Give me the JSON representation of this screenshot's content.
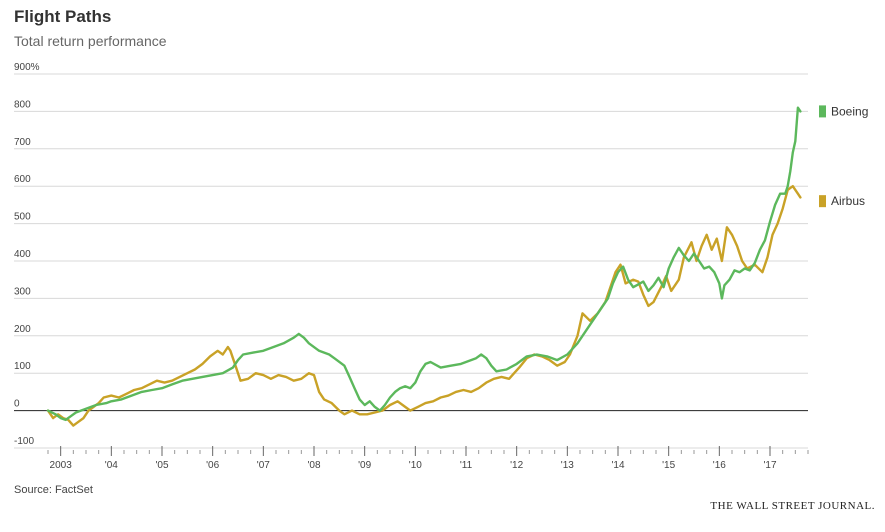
{
  "header": {
    "title": "Flight Paths",
    "subtitle": "Total return performance"
  },
  "footer": {
    "source": "Source: FactSet",
    "brand": "THE WALL STREET JOURNAL."
  },
  "colors": {
    "boeing": "#5cb85c",
    "airbus": "#c9a227",
    "grid": "#d8d8d8",
    "zero": "#222222"
  },
  "chart_data": {
    "type": "line",
    "title": "Flight Paths",
    "subtitle": "Total return performance",
    "ylim": [
      -100,
      900
    ],
    "yticks": [
      {
        "value": 900,
        "label": "900%"
      },
      {
        "value": 800,
        "label": "800"
      },
      {
        "value": 700,
        "label": "700"
      },
      {
        "value": 600,
        "label": "600"
      },
      {
        "value": 500,
        "label": "500"
      },
      {
        "value": 400,
        "label": "400"
      },
      {
        "value": 300,
        "label": "300"
      },
      {
        "value": 200,
        "label": "200"
      },
      {
        "value": 100,
        "label": "100"
      },
      {
        "value": 0,
        "label": "0"
      },
      {
        "value": -100,
        "label": "-100"
      }
    ],
    "xlim": [
      2002.75,
      2017.75
    ],
    "xticks": [
      {
        "value": 2003,
        "label": "2003"
      },
      {
        "value": 2004,
        "label": "'04"
      },
      {
        "value": 2005,
        "label": "'05"
      },
      {
        "value": 2006,
        "label": "'06"
      },
      {
        "value": 2007,
        "label": "'07"
      },
      {
        "value": 2008,
        "label": "'08"
      },
      {
        "value": 2009,
        "label": "'09"
      },
      {
        "value": 2010,
        "label": "'10"
      },
      {
        "value": 2011,
        "label": "'11"
      },
      {
        "value": 2012,
        "label": "'12"
      },
      {
        "value": 2013,
        "label": "'13"
      },
      {
        "value": 2014,
        "label": "'14"
      },
      {
        "value": 2015,
        "label": "'15"
      },
      {
        "value": 2016,
        "label": "'16"
      },
      {
        "value": 2017,
        "label": "'17"
      }
    ],
    "grid": true,
    "legend": "right",
    "series": [
      {
        "name": "Boeing",
        "color": "#5cb85c",
        "points": [
          [
            2002.75,
            0
          ],
          [
            2002.9,
            -10
          ],
          [
            2003.0,
            -20
          ],
          [
            2003.1,
            -25
          ],
          [
            2003.2,
            -15
          ],
          [
            2003.3,
            -5
          ],
          [
            2003.5,
            5
          ],
          [
            2003.7,
            15
          ],
          [
            2003.9,
            20
          ],
          [
            2004.0,
            25
          ],
          [
            2004.2,
            30
          ],
          [
            2004.4,
            40
          ],
          [
            2004.6,
            50
          ],
          [
            2004.8,
            55
          ],
          [
            2005.0,
            60
          ],
          [
            2005.2,
            70
          ],
          [
            2005.4,
            80
          ],
          [
            2005.6,
            85
          ],
          [
            2005.8,
            90
          ],
          [
            2006.0,
            95
          ],
          [
            2006.2,
            100
          ],
          [
            2006.4,
            115
          ],
          [
            2006.5,
            135
          ],
          [
            2006.6,
            150
          ],
          [
            2006.8,
            155
          ],
          [
            2007.0,
            160
          ],
          [
            2007.2,
            170
          ],
          [
            2007.4,
            180
          ],
          [
            2007.6,
            195
          ],
          [
            2007.7,
            205
          ],
          [
            2007.8,
            195
          ],
          [
            2007.9,
            180
          ],
          [
            2008.1,
            160
          ],
          [
            2008.3,
            150
          ],
          [
            2008.4,
            140
          ],
          [
            2008.6,
            120
          ],
          [
            2008.7,
            90
          ],
          [
            2008.8,
            60
          ],
          [
            2008.9,
            30
          ],
          [
            2009.0,
            15
          ],
          [
            2009.1,
            25
          ],
          [
            2009.2,
            10
          ],
          [
            2009.3,
            0
          ],
          [
            2009.4,
            15
          ],
          [
            2009.5,
            35
          ],
          [
            2009.6,
            50
          ],
          [
            2009.7,
            60
          ],
          [
            2009.8,
            65
          ],
          [
            2009.9,
            60
          ],
          [
            2010.0,
            75
          ],
          [
            2010.1,
            105
          ],
          [
            2010.2,
            125
          ],
          [
            2010.3,
            130
          ],
          [
            2010.5,
            115
          ],
          [
            2010.7,
            120
          ],
          [
            2010.9,
            125
          ],
          [
            2011.0,
            130
          ],
          [
            2011.2,
            140
          ],
          [
            2011.3,
            150
          ],
          [
            2011.4,
            140
          ],
          [
            2011.5,
            120
          ],
          [
            2011.6,
            105
          ],
          [
            2011.8,
            110
          ],
          [
            2012.0,
            125
          ],
          [
            2012.2,
            145
          ],
          [
            2012.4,
            150
          ],
          [
            2012.6,
            145
          ],
          [
            2012.8,
            135
          ],
          [
            2013.0,
            150
          ],
          [
            2013.2,
            180
          ],
          [
            2013.4,
            220
          ],
          [
            2013.6,
            260
          ],
          [
            2013.8,
            300
          ],
          [
            2013.9,
            340
          ],
          [
            2014.0,
            370
          ],
          [
            2014.1,
            385
          ],
          [
            2014.2,
            350
          ],
          [
            2014.3,
            330
          ],
          [
            2014.5,
            345
          ],
          [
            2014.6,
            320
          ],
          [
            2014.7,
            335
          ],
          [
            2014.8,
            355
          ],
          [
            2014.9,
            330
          ],
          [
            2015.0,
            380
          ],
          [
            2015.1,
            410
          ],
          [
            2015.2,
            435
          ],
          [
            2015.3,
            415
          ],
          [
            2015.4,
            400
          ],
          [
            2015.5,
            420
          ],
          [
            2015.6,
            400
          ],
          [
            2015.7,
            380
          ],
          [
            2015.8,
            385
          ],
          [
            2015.9,
            370
          ],
          [
            2016.0,
            340
          ],
          [
            2016.05,
            300
          ],
          [
            2016.1,
            335
          ],
          [
            2016.2,
            350
          ],
          [
            2016.3,
            375
          ],
          [
            2016.4,
            370
          ],
          [
            2016.5,
            380
          ],
          [
            2016.6,
            375
          ],
          [
            2016.7,
            395
          ],
          [
            2016.8,
            430
          ],
          [
            2016.9,
            455
          ],
          [
            2017.0,
            505
          ],
          [
            2017.1,
            550
          ],
          [
            2017.2,
            580
          ],
          [
            2017.3,
            580
          ],
          [
            2017.35,
            600
          ],
          [
            2017.4,
            640
          ],
          [
            2017.45,
            690
          ],
          [
            2017.5,
            720
          ],
          [
            2017.55,
            810
          ],
          [
            2017.6,
            800
          ]
        ]
      },
      {
        "name": "Airbus",
        "color": "#c9a227",
        "points": [
          [
            2002.75,
            0
          ],
          [
            2002.85,
            -20
          ],
          [
            2002.95,
            -10
          ],
          [
            2003.05,
            -20
          ],
          [
            2003.15,
            -25
          ],
          [
            2003.25,
            -40
          ],
          [
            2003.35,
            -30
          ],
          [
            2003.45,
            -20
          ],
          [
            2003.55,
            0
          ],
          [
            2003.65,
            10
          ],
          [
            2003.75,
            20
          ],
          [
            2003.85,
            35
          ],
          [
            2004.0,
            40
          ],
          [
            2004.15,
            35
          ],
          [
            2004.3,
            45
          ],
          [
            2004.45,
            55
          ],
          [
            2004.6,
            60
          ],
          [
            2004.75,
            70
          ],
          [
            2004.9,
            80
          ],
          [
            2005.05,
            75
          ],
          [
            2005.2,
            80
          ],
          [
            2005.35,
            90
          ],
          [
            2005.5,
            100
          ],
          [
            2005.65,
            110
          ],
          [
            2005.8,
            125
          ],
          [
            2005.95,
            145
          ],
          [
            2006.1,
            160
          ],
          [
            2006.2,
            150
          ],
          [
            2006.3,
            170
          ],
          [
            2006.35,
            160
          ],
          [
            2006.45,
            120
          ],
          [
            2006.55,
            80
          ],
          [
            2006.7,
            85
          ],
          [
            2006.85,
            100
          ],
          [
            2007.0,
            95
          ],
          [
            2007.15,
            85
          ],
          [
            2007.3,
            95
          ],
          [
            2007.45,
            90
          ],
          [
            2007.6,
            80
          ],
          [
            2007.75,
            85
          ],
          [
            2007.9,
            100
          ],
          [
            2008.0,
            95
          ],
          [
            2008.1,
            50
          ],
          [
            2008.2,
            30
          ],
          [
            2008.35,
            20
          ],
          [
            2008.5,
            0
          ],
          [
            2008.6,
            -10
          ],
          [
            2008.75,
            0
          ],
          [
            2008.9,
            -10
          ],
          [
            2009.05,
            -10
          ],
          [
            2009.2,
            -5
          ],
          [
            2009.35,
            0
          ],
          [
            2009.5,
            15
          ],
          [
            2009.65,
            25
          ],
          [
            2009.8,
            10
          ],
          [
            2009.9,
            0
          ],
          [
            2010.05,
            10
          ],
          [
            2010.2,
            20
          ],
          [
            2010.35,
            25
          ],
          [
            2010.5,
            35
          ],
          [
            2010.65,
            40
          ],
          [
            2010.8,
            50
          ],
          [
            2010.95,
            55
          ],
          [
            2011.1,
            50
          ],
          [
            2011.25,
            60
          ],
          [
            2011.4,
            75
          ],
          [
            2011.55,
            85
          ],
          [
            2011.7,
            90
          ],
          [
            2011.85,
            85
          ],
          [
            2011.95,
            100
          ],
          [
            2012.05,
            115
          ],
          [
            2012.2,
            140
          ],
          [
            2012.35,
            150
          ],
          [
            2012.5,
            145
          ],
          [
            2012.65,
            135
          ],
          [
            2012.8,
            120
          ],
          [
            2012.95,
            130
          ],
          [
            2013.05,
            150
          ],
          [
            2013.2,
            200
          ],
          [
            2013.3,
            260
          ],
          [
            2013.45,
            240
          ],
          [
            2013.6,
            260
          ],
          [
            2013.75,
            290
          ],
          [
            2013.85,
            330
          ],
          [
            2013.95,
            370
          ],
          [
            2014.05,
            390
          ],
          [
            2014.15,
            340
          ],
          [
            2014.3,
            350
          ],
          [
            2014.4,
            345
          ],
          [
            2014.5,
            310
          ],
          [
            2014.6,
            280
          ],
          [
            2014.7,
            290
          ],
          [
            2014.85,
            330
          ],
          [
            2014.95,
            360
          ],
          [
            2015.05,
            320
          ],
          [
            2015.2,
            350
          ],
          [
            2015.3,
            410
          ],
          [
            2015.45,
            450
          ],
          [
            2015.55,
            400
          ],
          [
            2015.65,
            440
          ],
          [
            2015.75,
            470
          ],
          [
            2015.85,
            430
          ],
          [
            2015.95,
            460
          ],
          [
            2016.05,
            400
          ],
          [
            2016.15,
            490
          ],
          [
            2016.25,
            470
          ],
          [
            2016.35,
            440
          ],
          [
            2016.45,
            400
          ],
          [
            2016.55,
            380
          ],
          [
            2016.7,
            390
          ],
          [
            2016.85,
            370
          ],
          [
            2016.95,
            410
          ],
          [
            2017.05,
            470
          ],
          [
            2017.15,
            500
          ],
          [
            2017.25,
            540
          ],
          [
            2017.35,
            590
          ],
          [
            2017.45,
            600
          ],
          [
            2017.55,
            580
          ],
          [
            2017.6,
            570
          ]
        ]
      }
    ]
  }
}
